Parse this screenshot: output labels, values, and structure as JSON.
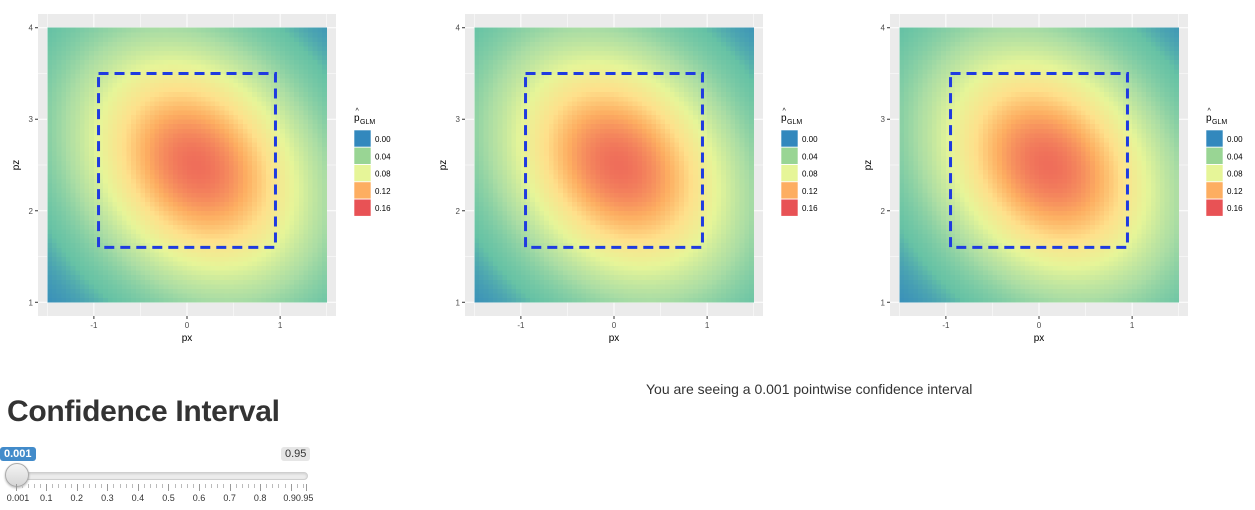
{
  "plots": [
    {
      "chart_data": {
        "type": "heatmap",
        "xlabel": "px",
        "ylabel": "pz",
        "xlim": [
          -1.5,
          1.5
        ],
        "ylim": [
          1,
          4
        ],
        "x_ticks": [
          "-1",
          "0",
          "1"
        ],
        "y_ticks": [
          "1",
          "2",
          "3",
          "4"
        ],
        "peak": {
          "x": 0.1,
          "y": 2.5
        },
        "value_range": [
          0.0,
          0.17
        ],
        "strike_zone": {
          "x": [
            -0.95,
            0.95
          ],
          "y": [
            1.6,
            3.5
          ]
        },
        "grid": true,
        "legend": {
          "title": "p",
          "title_sub": "GLM",
          "placement": "right",
          "entries": [
            {
              "label": "0.00",
              "color": "#3288bd"
            },
            {
              "label": "0.04",
              "color": "#99d594"
            },
            {
              "label": "0.08",
              "color": "#e6f598"
            },
            {
              "label": "0.12",
              "color": "#fdae61"
            },
            {
              "label": "0.16",
              "color": "#e85255"
            }
          ]
        }
      }
    },
    {
      "chart_data": {
        "type": "heatmap",
        "xlabel": "px",
        "ylabel": "pz",
        "xlim": [
          -1.5,
          1.5
        ],
        "ylim": [
          1,
          4
        ],
        "x_ticks": [
          "-1",
          "0",
          "1"
        ],
        "y_ticks": [
          "1",
          "2",
          "3",
          "4"
        ],
        "peak": {
          "x": 0.05,
          "y": 2.5
        },
        "value_range": [
          0.0,
          0.17
        ],
        "strike_zone": {
          "x": [
            -0.95,
            0.95
          ],
          "y": [
            1.6,
            3.5
          ]
        },
        "grid": true,
        "legend": {
          "title": "p",
          "title_sub": "GLM",
          "placement": "right",
          "entries": [
            {
              "label": "0.00",
              "color": "#3288bd"
            },
            {
              "label": "0.04",
              "color": "#99d594"
            },
            {
              "label": "0.08",
              "color": "#e6f598"
            },
            {
              "label": "0.12",
              "color": "#fdae61"
            },
            {
              "label": "0.16",
              "color": "#e85255"
            }
          ]
        }
      }
    },
    {
      "chart_data": {
        "type": "heatmap",
        "xlabel": "px",
        "ylabel": "pz",
        "xlim": [
          -1.5,
          1.5
        ],
        "ylim": [
          1,
          4
        ],
        "x_ticks": [
          "-1",
          "0",
          "1"
        ],
        "y_ticks": [
          "1",
          "2",
          "3",
          "4"
        ],
        "peak": {
          "x": 0.1,
          "y": 2.5
        },
        "value_range": [
          0.0,
          0.17
        ],
        "strike_zone": {
          "x": [
            -0.95,
            0.95
          ],
          "y": [
            1.6,
            3.5
          ]
        },
        "grid": true,
        "legend": {
          "title": "p",
          "title_sub": "GLM",
          "placement": "right",
          "entries": [
            {
              "label": "0.00",
              "color": "#3288bd"
            },
            {
              "label": "0.04",
              "color": "#99d594"
            },
            {
              "label": "0.08",
              "color": "#e6f598"
            },
            {
              "label": "0.12",
              "color": "#fdae61"
            },
            {
              "label": "0.16",
              "color": "#e85255"
            }
          ]
        }
      }
    }
  ],
  "colors": {
    "panel_bg": "#ebebeb",
    "grid": "#ffffff",
    "zone": "#1f3be0",
    "slider_accent": "#428bca"
  },
  "controls": {
    "title": "Confidence Interval",
    "status": "You are seeing a 0.001 pointwise confidence interval",
    "slider": {
      "min_label": "0.001",
      "max_label": "0.95",
      "value": 0.001,
      "min": 0.001,
      "max": 0.95,
      "value_label": "0.001",
      "tick_labels": [
        "0.001",
        "0.1",
        "0.2",
        "0.3",
        "0.4",
        "0.5",
        "0.6",
        "0.7",
        "0.8",
        "0.90.95"
      ]
    }
  }
}
